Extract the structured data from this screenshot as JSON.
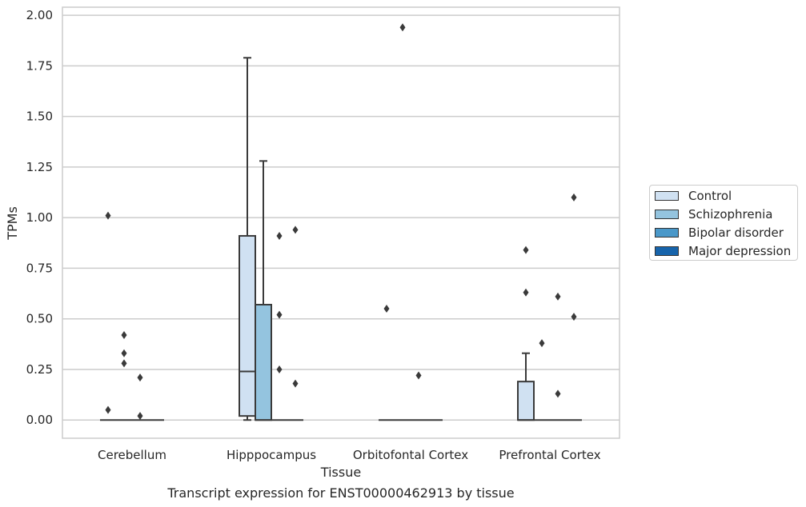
{
  "chart_data": {
    "type": "box",
    "title": "Transcript expression for ENST00000462913 by tissue",
    "xlabel": "Tissue",
    "ylabel": "TPMs",
    "ylim": [
      -0.09,
      2.04
    ],
    "yticks": [
      "0.00",
      "0.25",
      "0.50",
      "0.75",
      "1.00",
      "1.25",
      "1.50",
      "1.75",
      "2.00"
    ],
    "grid": true,
    "legend_position": "right",
    "categories": [
      "Cerebellum",
      "Hipppocampus",
      "Orbitofontal Cortex",
      "Prefrontal Cortex"
    ],
    "series": [
      {
        "name": "Control",
        "color": "#d0e1f2",
        "boxes": [
          {
            "q1": 0,
            "median": 0,
            "q3": 0,
            "whisker_low": 0,
            "whisker_high": 0,
            "outliers": [
              1.01,
              0.05
            ]
          },
          {
            "q1": 0.02,
            "median": 0.24,
            "q3": 0.91,
            "whisker_low": 0,
            "whisker_high": 1.79,
            "outliers": []
          },
          {
            "q1": 0,
            "median": 0,
            "q3": 0,
            "whisker_low": 0,
            "whisker_high": 0,
            "outliers": [
              0.55
            ]
          },
          {
            "q1": 0,
            "median": 0,
            "q3": 0.19,
            "whisker_low": 0,
            "whisker_high": 0.33,
            "outliers": [
              0.84,
              0.63
            ]
          }
        ]
      },
      {
        "name": "Schizophrenia",
        "color": "#94c4df",
        "boxes": [
          {
            "q1": 0,
            "median": 0,
            "q3": 0,
            "whisker_low": 0,
            "whisker_high": 0,
            "outliers": [
              0.28,
              0.42,
              0.33
            ]
          },
          {
            "q1": 0,
            "median": 0,
            "q3": 0.57,
            "whisker_low": 0,
            "whisker_high": 1.28,
            "outliers": []
          },
          {
            "q1": 0,
            "median": 0,
            "q3": 0,
            "whisker_low": 0,
            "whisker_high": 0,
            "outliers": [
              1.94
            ]
          },
          {
            "q1": 0,
            "median": 0,
            "q3": 0,
            "whisker_low": 0,
            "whisker_high": 0,
            "outliers": [
              0.38
            ]
          }
        ]
      },
      {
        "name": "Bipolar disorder",
        "color": "#4a98c9",
        "boxes": [
          {
            "q1": 0,
            "median": 0,
            "q3": 0,
            "whisker_low": 0,
            "whisker_high": 0,
            "outliers": [
              0.21,
              0.02
            ]
          },
          {
            "q1": 0,
            "median": 0,
            "q3": 0,
            "whisker_low": 0,
            "whisker_high": 0,
            "outliers": [
              0.91,
              0.52,
              0.25
            ]
          },
          {
            "q1": 0,
            "median": 0,
            "q3": 0,
            "whisker_low": 0,
            "whisker_high": 0,
            "outliers": [
              0.22
            ]
          },
          {
            "q1": 0,
            "median": 0,
            "q3": 0,
            "whisker_low": 0,
            "whisker_high": 0,
            "outliers": [
              0.61,
              0.13
            ]
          }
        ]
      },
      {
        "name": "Major depression",
        "color": "#1764ab",
        "boxes": [
          {
            "q1": 0,
            "median": 0,
            "q3": 0,
            "whisker_low": 0,
            "whisker_high": 0,
            "outliers": []
          },
          {
            "q1": 0,
            "median": 0,
            "q3": 0,
            "whisker_low": 0,
            "whisker_high": 0,
            "outliers": [
              0.94,
              0.18
            ]
          },
          {
            "q1": 0,
            "median": 0,
            "q3": 0,
            "whisker_low": 0,
            "whisker_high": 0,
            "outliers": []
          },
          {
            "q1": 0,
            "median": 0,
            "q3": 0,
            "whisker_low": 0,
            "whisker_high": 0,
            "outliers": [
              1.1,
              0.51
            ]
          }
        ]
      }
    ]
  }
}
